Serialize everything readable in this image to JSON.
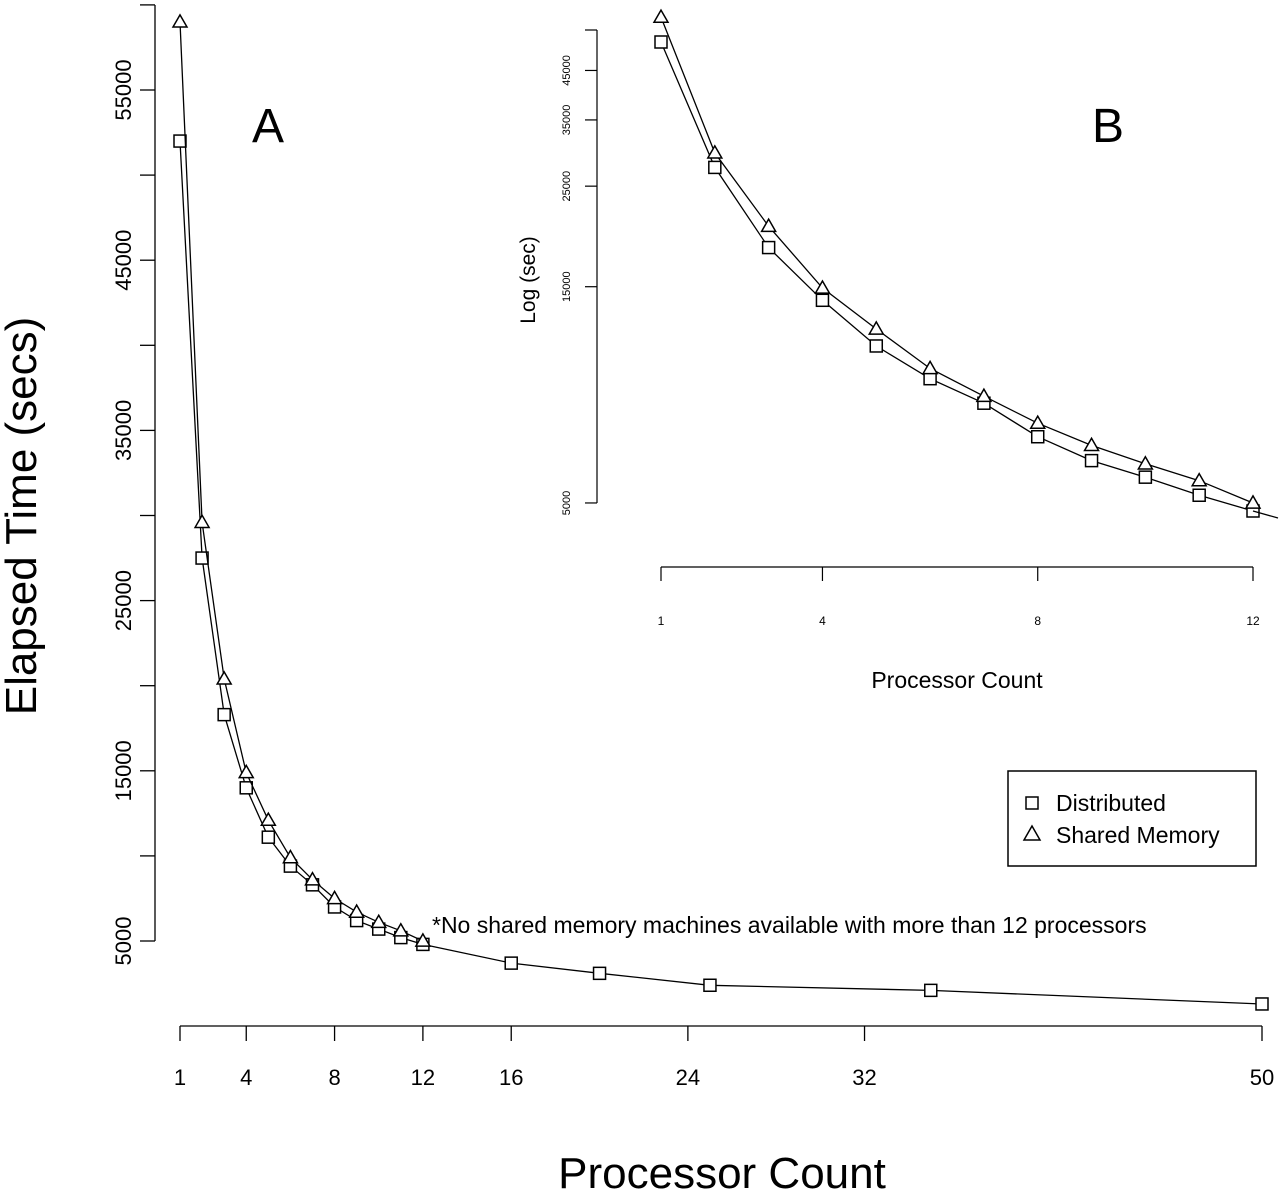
{
  "chart_data": [
    {
      "panel_label": "A",
      "type": "line",
      "xlabel": "Processor Count",
      "ylabel": "Elapsed Time (secs)",
      "scale": "linear",
      "xlim": [
        1,
        50
      ],
      "ylim": [
        5000,
        55000
      ],
      "xticks": [
        1,
        4,
        8,
        12,
        16,
        24,
        32,
        50
      ],
      "yticks": [
        5000,
        15000,
        25000,
        35000,
        45000,
        55000
      ],
      "annotation": "*No shared memory machines available with more than 12 processors",
      "legend": {
        "position": "right",
        "entries": [
          {
            "label": "Distributed",
            "marker": "square"
          },
          {
            "label": "Shared Memory",
            "marker": "triangle"
          }
        ]
      },
      "series": [
        {
          "name": "Distributed",
          "marker": "square",
          "x": [
            1,
            2,
            3,
            4,
            5,
            6,
            7,
            8,
            9,
            10,
            11,
            12,
            16,
            20,
            25,
            35,
            50
          ],
          "y": [
            52000,
            27500,
            18300,
            14000,
            11100,
            9400,
            8300,
            7000,
            6200,
            5700,
            5200,
            4800,
            3700,
            3100,
            2400,
            2100,
            1300
          ]
        },
        {
          "name": "Shared Memory",
          "marker": "triangle",
          "x": [
            1,
            2,
            3,
            4,
            5,
            6,
            7,
            8,
            9,
            10,
            11,
            12
          ],
          "y": [
            59000,
            29600,
            20400,
            14900,
            12100,
            9900,
            8600,
            7500,
            6700,
            6100,
            5600,
            5000
          ]
        }
      ]
    },
    {
      "panel_label": "B",
      "type": "line",
      "xlabel": "Processor Count",
      "ylabel": "Log (sec)",
      "scale": "log-y",
      "xlim": [
        1,
        12
      ],
      "xticks": [
        1,
        4,
        8,
        12
      ],
      "yticks": [
        5000,
        15000,
        25000,
        35000,
        45000
      ],
      "series": [
        {
          "name": "Distributed",
          "marker": "square",
          "x": [
            1,
            2,
            3,
            4,
            5,
            6,
            7,
            8,
            9,
            10,
            11,
            12
          ],
          "y": [
            52000,
            27500,
            18300,
            14000,
            11100,
            9400,
            8300,
            7000,
            6200,
            5700,
            5200,
            4800
          ]
        },
        {
          "name": "Shared Memory",
          "marker": "triangle",
          "x": [
            1,
            2,
            3,
            4,
            5,
            6,
            7,
            8,
            9,
            10,
            11,
            12
          ],
          "y": [
            59000,
            29600,
            20400,
            14900,
            12100,
            9900,
            8600,
            7500,
            6700,
            6100,
            5600,
            5000
          ]
        }
      ]
    }
  ]
}
